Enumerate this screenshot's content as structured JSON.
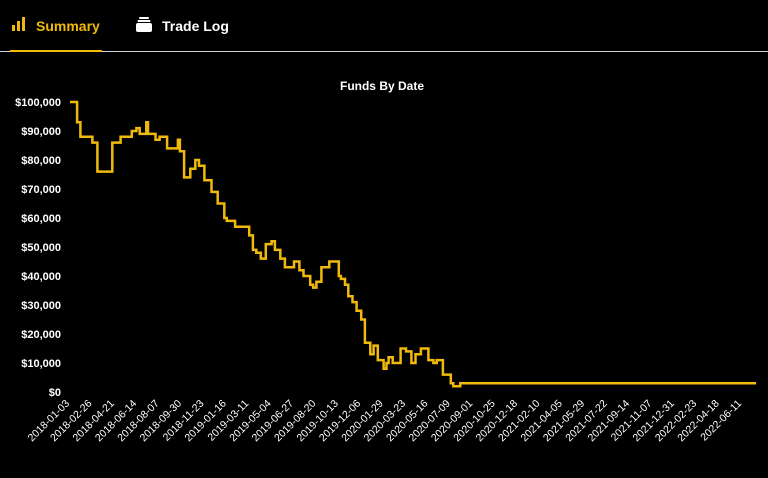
{
  "tabs": [
    {
      "label": "Summary",
      "icon": "bar-chart-icon",
      "active": true
    },
    {
      "label": "Trade Log",
      "icon": "stack-icon",
      "active": false
    }
  ],
  "colors": {
    "accent": "#f0b90b",
    "line": "#f0b90b",
    "background": "#000000",
    "text": "#ffffff"
  },
  "chart_data": {
    "type": "line",
    "title": "Funds By Date",
    "xlabel": "",
    "ylabel": "",
    "ylim": [
      0,
      100000
    ],
    "y_ticks": [
      0,
      10000,
      20000,
      30000,
      40000,
      50000,
      60000,
      70000,
      80000,
      90000,
      100000
    ],
    "y_tick_labels": [
      "$0",
      "$10,000",
      "$20,000",
      "$30,000",
      "$40,000",
      "$50,000",
      "$60,000",
      "$70,000",
      "$80,000",
      "$90,000",
      "$100,000"
    ],
    "x_tick_labels": [
      "2018-01-03",
      "2018-02-26",
      "2018-04-21",
      "2018-06-14",
      "2018-08-07",
      "2018-09-30",
      "2018-11-23",
      "2019-01-16",
      "2019-03-11",
      "2019-05-04",
      "2019-06-27",
      "2019-08-20",
      "2019-10-13",
      "2019-12-06",
      "2020-01-29",
      "2020-03-23",
      "2020-05-16",
      "2020-07-09",
      "2020-09-01",
      "2020-10-25",
      "2020-12-18",
      "2021-02-10",
      "2021-04-05",
      "2021-05-29",
      "2021-07-22",
      "2021-09-14",
      "2021-11-07",
      "2021-12-31",
      "2022-02-23",
      "2022-04-18",
      "2022-06-11"
    ],
    "grid": false,
    "series": [
      {
        "step": true,
        "x": [
          "2018-01-03",
          "2018-01-20",
          "2018-01-28",
          "2018-02-26",
          "2018-03-05",
          "2018-03-10",
          "2018-04-10",
          "2018-04-15",
          "2018-04-25",
          "2018-05-05",
          "2018-06-01",
          "2018-06-12",
          "2018-06-20",
          "2018-07-06",
          "2018-07-10",
          "2018-07-20",
          "2018-07-28",
          "2018-08-07",
          "2018-08-25",
          "2018-09-20",
          "2018-09-25",
          "2018-10-05",
          "2018-10-20",
          "2018-11-01",
          "2018-11-10",
          "2018-11-23",
          "2018-12-05",
          "2018-12-10",
          "2018-12-25",
          "2019-01-10",
          "2019-01-16",
          "2019-01-28",
          "2019-02-05",
          "2019-02-10",
          "2019-03-11",
          "2019-03-20",
          "2019-03-28",
          "2019-04-08",
          "2019-04-20",
          "2019-05-04",
          "2019-05-12",
          "2019-05-25",
          "2019-06-05",
          "2019-06-27",
          "2019-07-10",
          "2019-07-20",
          "2019-08-05",
          "2019-08-12",
          "2019-08-20",
          "2019-09-01",
          "2019-09-20",
          "2019-10-13",
          "2019-10-18",
          "2019-10-28",
          "2019-11-05",
          "2019-11-15",
          "2019-11-25",
          "2019-12-06",
          "2019-12-15",
          "2019-12-28",
          "2020-01-05",
          "2020-01-15",
          "2020-01-29",
          "2020-02-05",
          "2020-02-10",
          "2020-02-20",
          "2020-03-01",
          "2020-03-10",
          "2020-03-23",
          "2020-04-05",
          "2020-04-15",
          "2020-04-28",
          "2020-05-16",
          "2020-05-28",
          "2020-06-05",
          "2020-06-20",
          "2020-07-09",
          "2020-07-15",
          "2020-08-01",
          "2020-08-08",
          "2020-08-12",
          "2022-07-15"
        ],
        "values": [
          100000,
          93000,
          88000,
          86000,
          86000,
          76000,
          76000,
          86000,
          86000,
          88000,
          90000,
          91000,
          89000,
          93000,
          89000,
          89000,
          87000,
          88000,
          84000,
          87000,
          83000,
          74000,
          77000,
          80000,
          78000,
          73000,
          73000,
          69000,
          65000,
          60000,
          59000,
          59000,
          57000,
          57000,
          54000,
          49000,
          48000,
          46000,
          51000,
          52000,
          49000,
          46000,
          43000,
          45000,
          42000,
          40000,
          37000,
          36000,
          38000,
          43000,
          45000,
          40000,
          39000,
          37000,
          33000,
          31000,
          28000,
          25000,
          17000,
          13000,
          16000,
          11000,
          8000,
          10000,
          12000,
          10000,
          10000,
          15000,
          14000,
          10000,
          13000,
          15000,
          11000,
          10000,
          11000,
          6000,
          3000,
          2000,
          3000,
          3000,
          3000,
          3000
        ]
      }
    ]
  }
}
